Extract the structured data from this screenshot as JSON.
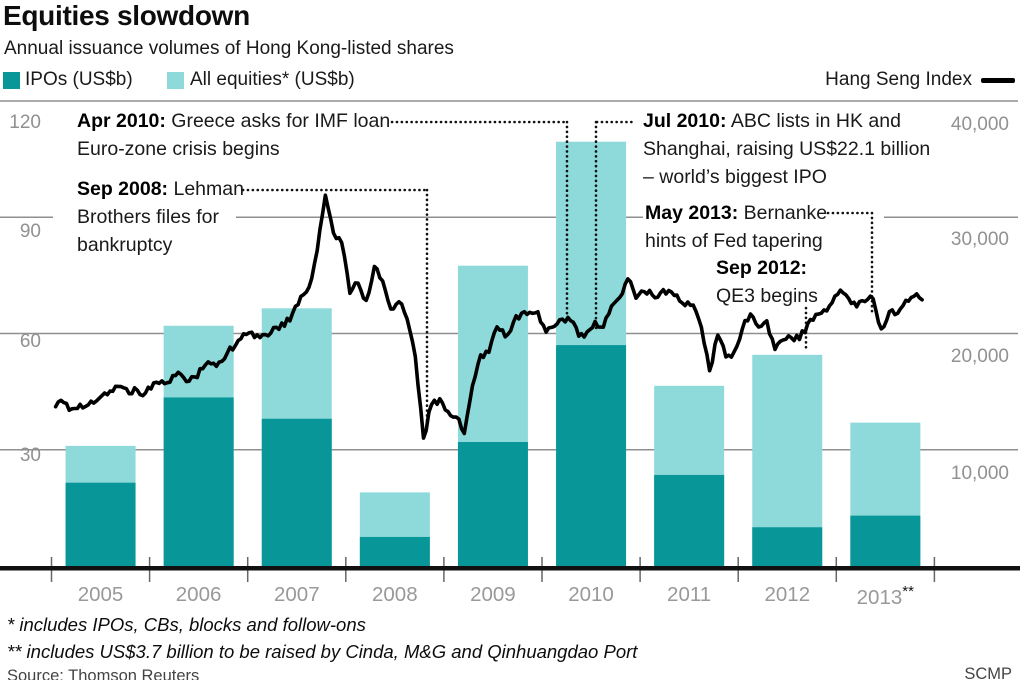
{
  "header": {
    "title": "Equities slowdown",
    "subtitle": "Annual issuance volumes of Hong Kong-listed shares"
  },
  "legend": {
    "ipos": "IPOs (US$b)",
    "all_equities": "All equities* (US$b)",
    "hang_seng": "Hang Seng Index"
  },
  "annotations": {
    "apr2010": {
      "label": "Apr 2010:",
      "line1": "Greece asks for IMF loan",
      "line2": "Euro-zone crisis begins"
    },
    "sep2008": {
      "label": "Sep 2008:",
      "line1": "Lehman",
      "line2": "Brothers files for",
      "line3": "bankruptcy"
    },
    "jul2010": {
      "label": "Jul 2010:",
      "line1": "ABC lists in HK and",
      "line2": "Shanghai, raising US$22.1 billion",
      "line3": "– world’s biggest IPO"
    },
    "may2013": {
      "label": "May 2013:",
      "line1": "Bernanke",
      "line2": "hints of Fed tapering"
    },
    "sep2012": {
      "label": "Sep 2012:",
      "line1": "QE3 begins"
    }
  },
  "footnotes": {
    "fn1": "* includes IPOs, CBs, blocks and follow-ons",
    "fn2": "** includes US$3.7 billion to be raised by Cinda, M&G and Qinhuangdao Port",
    "source": "Source: Thomson Reuters",
    "credit": "SCMP"
  },
  "colors": {
    "ipo_bar": "#089698",
    "all_equities_bar": "#8edada",
    "hsi_line": "#000000",
    "grid": "#8f8f8f",
    "axis": "#111111",
    "tick": "#666666"
  },
  "chart_data": {
    "type": "bar+line",
    "title": "Equities slowdown",
    "categories": [
      "2005",
      "2006",
      "2007",
      "2008",
      "2009",
      "2010",
      "2011",
      "2012",
      "2013"
    ],
    "last_category_marker": "**",
    "series": [
      {
        "name": "IPOs (US$b)",
        "type": "bar",
        "values": [
          21.5,
          43.5,
          38,
          7.5,
          32,
          57,
          23.5,
          10,
          13
        ]
      },
      {
        "name": "All equities* (US$b)",
        "type": "bar",
        "values": [
          31,
          62,
          66.5,
          19,
          77.5,
          109.5,
          46.5,
          54.5,
          37
        ]
      }
    ],
    "left_axis": {
      "label": "US$b",
      "ticks": [
        120,
        90,
        60,
        30
      ],
      "ylim": [
        0,
        120
      ]
    },
    "right_axis": {
      "label": "Hang Seng Index",
      "ticks": [
        "40,000",
        "30,000",
        "20,000",
        "10,000"
      ],
      "ylim": [
        0,
        40000
      ]
    },
    "grid": true,
    "legend_position": "top",
    "hang_seng_monthly": {
      "start": "2005-01",
      "end": "2013-11",
      "values": [
        13700,
        14060,
        13520,
        13910,
        13870,
        14200,
        14880,
        15030,
        15430,
        14820,
        15120,
        14880,
        15750,
        15920,
        15810,
        16660,
        15860,
        16270,
        16970,
        17390,
        17540,
        18320,
        18960,
        19970,
        20110,
        19650,
        19800,
        20530,
        20630,
        21770,
        23180,
        23980,
        27140,
        31900,
        28640,
        27810,
        23460,
        24330,
        22850,
        25760,
        24530,
        22100,
        22730,
        21260,
        18020,
        11000,
        13890,
        14390,
        13280,
        12810,
        11400,
        15520,
        18170,
        18380,
        20570,
        19720,
        20960,
        21750,
        21820,
        21870,
        20120,
        20610,
        21240,
        21110,
        19770,
        20130,
        21030,
        20540,
        22360,
        23100,
        24700,
        23040,
        23600,
        23300,
        23500,
        23700,
        23300,
        22400,
        22440,
        20530,
        16800,
        19860,
        17990,
        18430,
        20390,
        21680,
        20560,
        21090,
        18630,
        19440,
        19640,
        19480,
        20840,
        21640,
        22030,
        22660,
        23730,
        23020,
        22300,
        22740,
        22990,
        20400,
        21880,
        21730,
        22860,
        23210,
        22900
      ]
    }
  }
}
